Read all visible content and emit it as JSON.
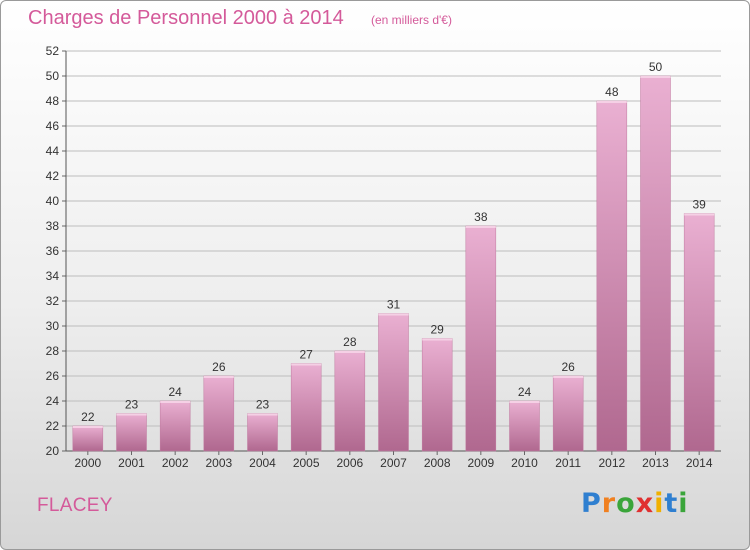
{
  "header": {
    "title": "Charges de Personnel 2000 à 2014",
    "subtitle": "(en milliers d'€)"
  },
  "footer": {
    "commune": "FLACEY",
    "logo_text": "Proxiti"
  },
  "colors": {
    "title": "#d45a9a",
    "bar_light": "#e8a8cc",
    "bar_dark": "#b06a92",
    "grid": "#bbbbbb"
  },
  "chart_data": {
    "type": "bar",
    "title": "Charges de Personnel 2000 à 2014",
    "subtitle": "(en milliers d'€)",
    "categories": [
      "2000",
      "2001",
      "2002",
      "2003",
      "2004",
      "2005",
      "2006",
      "2007",
      "2008",
      "2009",
      "2010",
      "2011",
      "2012",
      "2013",
      "2014"
    ],
    "values": [
      22,
      23,
      24,
      26,
      23,
      27,
      28,
      31,
      29,
      38,
      24,
      26,
      48,
      50,
      39
    ],
    "ylim": [
      20,
      52
    ],
    "yticks": [
      20,
      22,
      24,
      26,
      28,
      30,
      32,
      34,
      36,
      38,
      40,
      42,
      44,
      46,
      48,
      50,
      52
    ],
    "grid": true,
    "data_labels": true
  }
}
